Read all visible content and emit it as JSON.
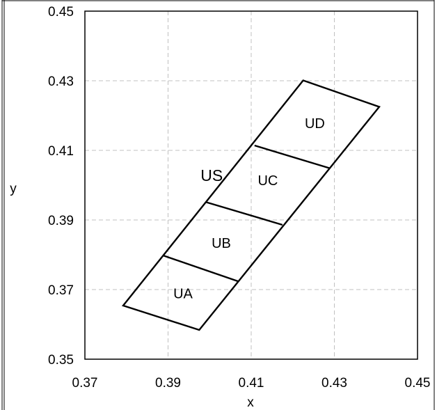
{
  "chart_data": {
    "type": "line",
    "xlabel": "x",
    "ylabel": "y",
    "xlim": [
      0.37,
      0.45
    ],
    "ylim": [
      0.35,
      0.45
    ],
    "xticks": [
      "0.37",
      "0.39",
      "0.41",
      "0.43",
      "0.45"
    ],
    "yticks": [
      "0.45",
      "0.43",
      "0.41",
      "0.39",
      "0.37",
      "0.35"
    ],
    "grid": true,
    "outline": {
      "name": "US",
      "x": [
        0.3792,
        0.3975,
        0.4408,
        0.4225,
        0.3792
      ],
      "y": [
        0.3654,
        0.3584,
        0.4225,
        0.4301,
        0.3654
      ]
    },
    "dividers": [
      {
        "x": [
          0.3888,
          0.4068
        ],
        "y": [
          0.3798,
          0.3724
        ]
      },
      {
        "x": [
          0.3992,
          0.4175
        ],
        "y": [
          0.3951,
          0.3886
        ]
      },
      {
        "x": [
          0.4108,
          0.4288
        ],
        "y": [
          0.4114,
          0.4049
        ]
      }
    ],
    "regions": [
      {
        "label": "UA",
        "x": 0.3936,
        "y": 0.3689
      },
      {
        "label": "UB",
        "x": 0.4028,
        "y": 0.3834
      },
      {
        "label": "UC",
        "x": 0.414,
        "y": 0.4014
      },
      {
        "label": "UD",
        "x": 0.4253,
        "y": 0.4178
      }
    ],
    "us_label": {
      "label": "US",
      "x": 0.4005,
      "y": 0.4028
    }
  }
}
